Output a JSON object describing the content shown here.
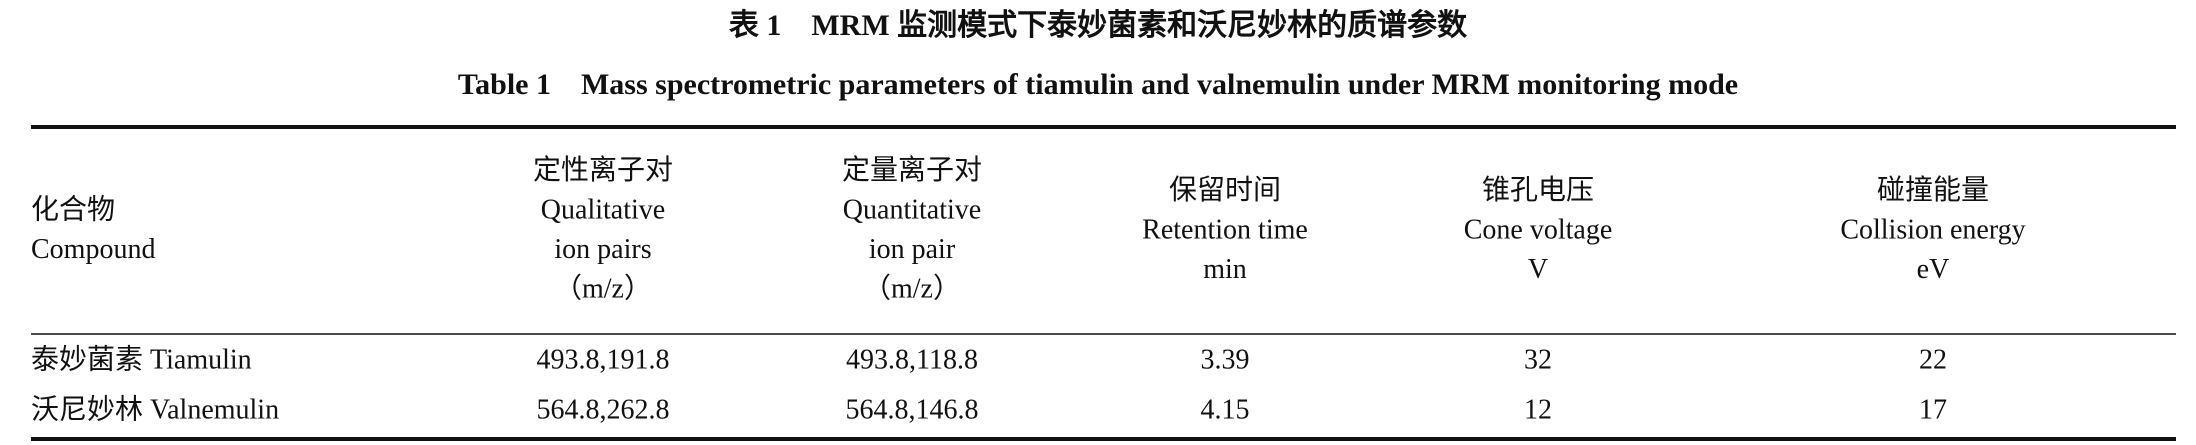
{
  "caption": {
    "zh": "表 1　MRM 监测模式下泰妙菌素和沃尼妙林的质谱参数",
    "en": "Table 1　Mass spectrometric parameters of tiamulin and valnemulin under MRM monitoring mode"
  },
  "table": {
    "header": [
      [
        "化合物",
        "Compound"
      ],
      [
        "定性离子对",
        "Qualitative",
        "ion pairs",
        "（m/z）"
      ],
      [
        "定量离子对",
        "Quantitative",
        "ion pair",
        "（m/z）"
      ],
      [
        "保留时间",
        "Retention time",
        "min"
      ],
      [
        "锥孔电压",
        "Cone voltage",
        "V"
      ],
      [
        "碰撞能量",
        "Collision energy",
        "eV"
      ]
    ],
    "rows": [
      [
        "泰妙菌素 Tiamulin",
        "493.8,191.8",
        "493.8,118.8",
        3.39,
        32,
        22
      ],
      [
        "沃尼妙林 Valnemulin",
        "564.8,262.8",
        "564.8,146.8",
        4.15,
        12,
        17
      ]
    ]
  }
}
